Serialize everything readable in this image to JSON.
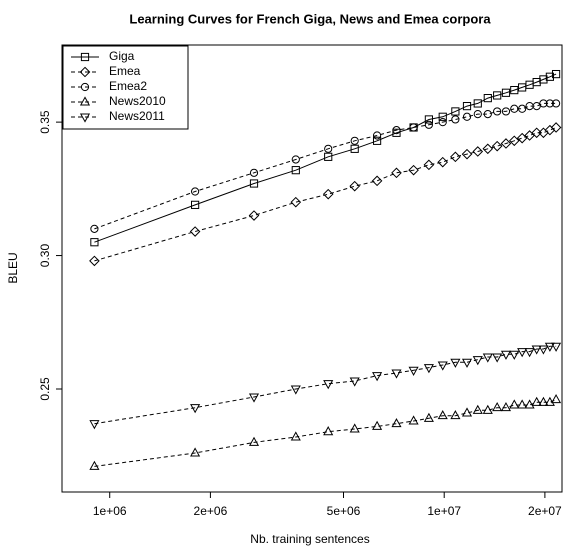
{
  "chart_data": {
    "type": "line",
    "title": "Learning Curves for French Giga, News and Emea corpora",
    "x_label": "Nb. training sentences",
    "y_label": "BLEU",
    "x_log": true,
    "legend": "top-left",
    "x": [
      900000,
      1800000,
      2700000,
      3600000,
      4500000,
      5400000,
      6300000,
      7200000,
      8100000,
      9000000,
      9900000,
      10800000,
      11700000,
      12600000,
      13500000,
      14400000,
      15300000,
      16200000,
      17100000,
      18000000,
      18900000,
      19800000,
      20700000,
      21600000
    ],
    "xlim": [
      720000,
      22500000
    ],
    "xticks": [
      {
        "value": 1000000,
        "label": "1e+06"
      },
      {
        "value": 2000000,
        "label": "2e+06"
      },
      {
        "value": 5000000,
        "label": "5e+06"
      },
      {
        "value": 10000000,
        "label": "1e+07"
      },
      {
        "value": 20000000,
        "label": "2e+07"
      }
    ],
    "ylim": [
      0.2114,
      0.3789
    ],
    "yticks": [
      0.25,
      {
        "value": 0.3,
        "label": "0.30"
      },
      0.35
    ],
    "series": [
      {
        "name": "Giga",
        "color": "#000000",
        "marker": "square",
        "dash": "solid",
        "values": [
          0.305,
          0.319,
          0.327,
          0.332,
          0.337,
          0.34,
          0.343,
          0.346,
          0.348,
          0.351,
          0.352,
          0.354,
          0.356,
          0.357,
          0.359,
          0.36,
          0.361,
          0.362,
          0.363,
          0.364,
          0.365,
          0.366,
          0.367,
          0.368
        ]
      },
      {
        "name": "Emea",
        "color": "#000000",
        "marker": "diamond",
        "dash": "dashed",
        "values": [
          0.298,
          0.309,
          0.315,
          0.32,
          0.323,
          0.326,
          0.328,
          0.331,
          0.332,
          0.334,
          0.335,
          0.337,
          0.338,
          0.339,
          0.34,
          0.341,
          0.342,
          0.343,
          0.344,
          0.345,
          0.346,
          0.346,
          0.347,
          0.348
        ]
      },
      {
        "name": "Emea2",
        "color": "#000000",
        "marker": "circle",
        "dash": "dashed",
        "values": [
          0.31,
          0.324,
          0.331,
          0.336,
          0.34,
          0.343,
          0.345,
          0.347,
          0.348,
          0.349,
          0.35,
          0.351,
          0.352,
          0.353,
          0.353,
          0.354,
          0.354,
          0.355,
          0.355,
          0.356,
          0.356,
          0.357,
          0.357,
          0.357
        ]
      },
      {
        "name": "News2010",
        "color": "#000000",
        "marker": "triangle-up",
        "dash": "dashed",
        "values": [
          0.221,
          0.226,
          0.23,
          0.232,
          0.234,
          0.235,
          0.236,
          0.237,
          0.238,
          0.239,
          0.24,
          0.24,
          0.241,
          0.242,
          0.242,
          0.243,
          0.243,
          0.244,
          0.244,
          0.244,
          0.245,
          0.245,
          0.245,
          0.246
        ]
      },
      {
        "name": "News2011",
        "color": "#000000",
        "marker": "triangle-down",
        "dash": "dashed",
        "values": [
          0.237,
          0.243,
          0.247,
          0.25,
          0.252,
          0.253,
          0.255,
          0.256,
          0.257,
          0.258,
          0.259,
          0.26,
          0.26,
          0.261,
          0.262,
          0.262,
          0.263,
          0.263,
          0.264,
          0.264,
          0.265,
          0.265,
          0.266,
          0.266
        ]
      }
    ]
  }
}
